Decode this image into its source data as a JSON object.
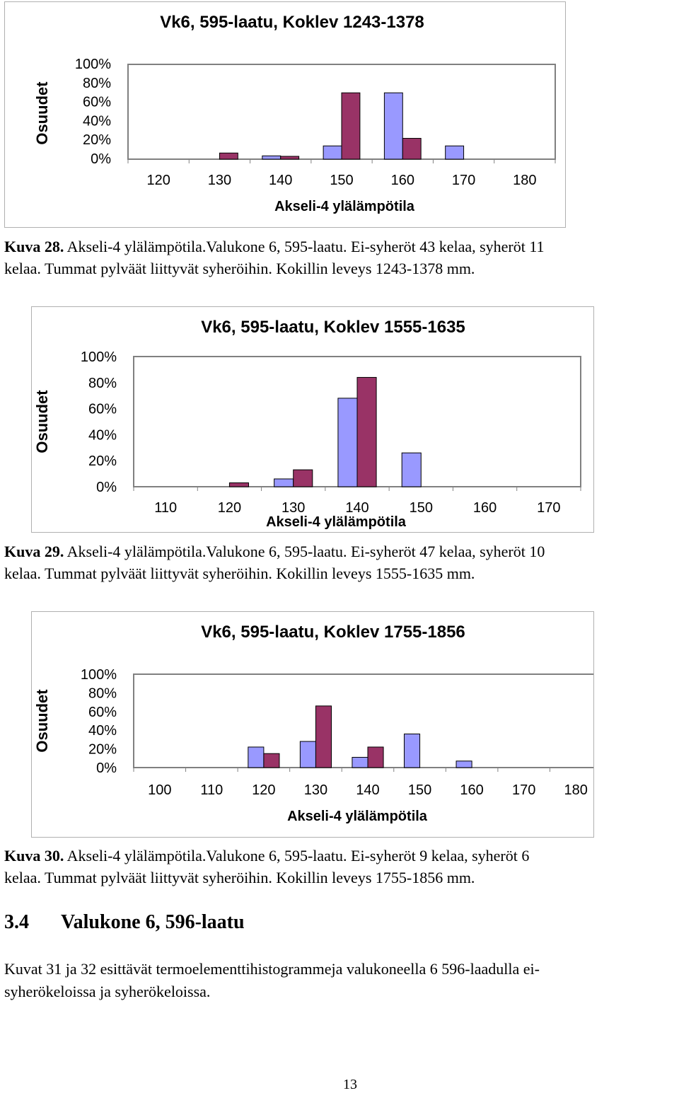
{
  "colors": {
    "light_bar": "#9999ff",
    "dark_bar": "#993366",
    "bar_stroke": "#000000",
    "plot_border": "#808080"
  },
  "charts": [
    {
      "chart_data": {
        "type": "bar",
        "title": "Vk6, 595-laatu, Koklev 1243-1378",
        "ylabel": "Osuudet",
        "xlabel": "Akseli-4 ylälämpötila",
        "ylim": [
          0,
          1
        ],
        "yticks": [
          "100%",
          "80%",
          "60%",
          "40%",
          "20%",
          "0%"
        ],
        "categories": [
          "120",
          "130",
          "140",
          "150",
          "160",
          "170",
          "180"
        ],
        "series": [
          {
            "values": [
              0,
              0,
              0.035,
              0.14,
              0.7,
              0.14,
              0
            ]
          },
          {
            "values": [
              0,
              0.065,
              0.03,
              0.7,
              0.22,
              0,
              0
            ]
          }
        ]
      },
      "caption": {
        "label": "Kuva 28.",
        "line1": " Akseli-4 ylälämpötila.Valukone 6, 595-laatu. Ei-syheröt 43 kelaa, syheröt  11",
        "line2": "kelaa. Tummat pylväät liittyvät syheröihin. Kokillin leveys 1243-1378 mm."
      }
    },
    {
      "chart_data": {
        "type": "bar",
        "title": "Vk6, 595-laatu, Koklev 1555-1635",
        "ylabel": "Osuudet",
        "xlabel": "Akseli-4 ylälämpötila",
        "ylim": [
          0,
          1
        ],
        "yticks": [
          "100%",
          "80%",
          "60%",
          "40%",
          "20%",
          "0%"
        ],
        "categories": [
          "110",
          "120",
          "130",
          "140",
          "150",
          "160",
          "170"
        ],
        "series": [
          {
            "values": [
              0,
              0,
              0.06,
              0.68,
              0.26,
              0,
              0
            ]
          },
          {
            "values": [
              0,
              0.03,
              0.13,
              0.84,
              0,
              0,
              0
            ]
          }
        ]
      },
      "caption": {
        "label": "Kuva 29.",
        "line1": " Akseli-4 ylälämpötila.Valukone 6, 595-laatu. Ei-syheröt 47 kelaa, syheröt  10",
        "line2": "kelaa. Tummat pylväät liittyvät syheröihin. Kokillin leveys 1555-1635 mm."
      }
    },
    {
      "chart_data": {
        "type": "bar",
        "title": "Vk6, 595-laatu, Koklev 1755-1856",
        "ylabel": "Osuudet",
        "xlabel": "Akseli-4 ylälämpötila",
        "ylim": [
          0,
          1
        ],
        "yticks": [
          "100%",
          "80%",
          "60%",
          "40%",
          "20%",
          "0%"
        ],
        "categories": [
          "100",
          "110",
          "120",
          "130",
          "140",
          "150",
          "160",
          "170",
          "180"
        ],
        "series": [
          {
            "values": [
              0,
              0,
              0.22,
              0.28,
              0.11,
              0.36,
              0.07,
              0,
              0
            ]
          },
          {
            "values": [
              0,
              0,
              0.15,
              0.66,
              0.22,
              0,
              0,
              0,
              0
            ]
          }
        ]
      },
      "caption": {
        "label": "Kuva 30.",
        "line1": " Akseli-4 ylälämpötila.Valukone 6, 595-laatu. Ei-syheröt 9 kelaa, syheröt  6",
        "line2": "kelaa. Tummat pylväät liittyvät syheröihin. Kokillin leveys 1755-1856 mm."
      }
    }
  ],
  "section": {
    "number": "3.4",
    "title": "Valukone 6, 596-laatu"
  },
  "paragraph": {
    "line1": "Kuvat 31 ja 32  esittävät termoelementtihistogrammeja valukoneella 6 596-laadulla ei-",
    "line2": "syherökeloissa ja syherökeloissa."
  },
  "page_number": "13"
}
